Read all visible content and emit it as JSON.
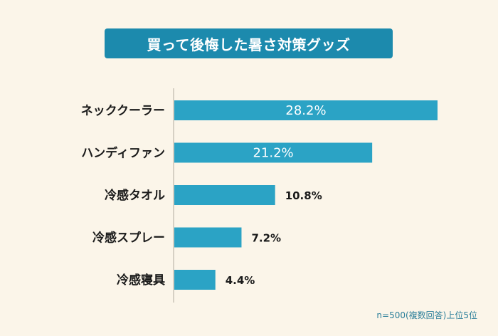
{
  "title": "買って後悔した暑さ対策グッズ",
  "footnote": "n=500(複数回答)上位5位",
  "colors": {
    "background": "#fbf5e9",
    "title_bg": "#1c8aad",
    "bar": "#2ba3c5",
    "axis": "#c9c4b8",
    "label_text": "#1a1a1a",
    "inside_value_text": "#ffffff",
    "outside_value_text": "#1a1a1a",
    "footnote_text": "#2c7f9a"
  },
  "chart_data": {
    "type": "bar",
    "orientation": "horizontal",
    "categories": [
      "ネッククーラー",
      "ハンディファン",
      "冷感タオル",
      "冷感スプレー",
      "冷感寝具"
    ],
    "values": [
      28.2,
      21.2,
      10.8,
      7.2,
      4.4
    ],
    "value_labels": [
      "28.2%",
      "21.2%",
      "10.8%",
      "7.2%",
      "4.4%"
    ],
    "unit": "%",
    "xlim": [
      0,
      30
    ],
    "grid": false,
    "legend": "none"
  }
}
